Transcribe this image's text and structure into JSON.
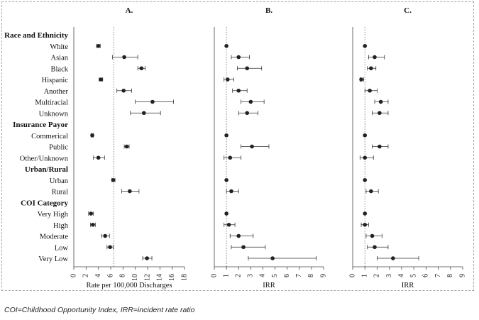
{
  "caption": "COI=Childhood Opportunity Index, IRR=incident rate ratio",
  "rows": [
    {
      "label": "Race and Ethnicity",
      "header": true
    },
    {
      "label": "White"
    },
    {
      "label": "Asian"
    },
    {
      "label": "Black"
    },
    {
      "label": "Hispanic"
    },
    {
      "label": "Another"
    },
    {
      "label": "Multiracial"
    },
    {
      "label": "Unknown"
    },
    {
      "label": "Insurance Payor",
      "header": true
    },
    {
      "label": "Commerical"
    },
    {
      "label": "Public"
    },
    {
      "label": "Other/Unknown"
    },
    {
      "label": "Urban/Rural",
      "header": true
    },
    {
      "label": "Urban"
    },
    {
      "label": "Rural"
    },
    {
      "label": "COI Category",
      "header": true
    },
    {
      "label": "Very High"
    },
    {
      "label": "High"
    },
    {
      "label": "Moderate"
    },
    {
      "label": "Low"
    },
    {
      "label": "Very Low"
    }
  ],
  "chart_data": [
    {
      "type": "scatter",
      "title": "A.",
      "xlabel": "Rate per 100,000 Discharges",
      "xlim": [
        0,
        18
      ],
      "xticks": [
        0,
        2,
        4,
        6,
        8,
        10,
        12,
        14,
        16,
        18
      ],
      "reference_line": 6.5,
      "points": [
        {
          "row": "White",
          "value": 4.0,
          "lo": 3.7,
          "hi": 4.3
        },
        {
          "row": "Asian",
          "value": 8.2,
          "lo": 6.3,
          "hi": 10.4
        },
        {
          "row": "Black",
          "value": 11.0,
          "lo": 10.4,
          "hi": 11.6
        },
        {
          "row": "Hispanic",
          "value": 4.4,
          "lo": 4.1,
          "hi": 4.7
        },
        {
          "row": "Another",
          "value": 8.1,
          "lo": 7.0,
          "hi": 9.4
        },
        {
          "row": "Multiracial",
          "value": 12.8,
          "lo": 10.0,
          "hi": 16.2
        },
        {
          "row": "Unknown",
          "value": 11.4,
          "lo": 9.2,
          "hi": 14.1
        },
        {
          "row": "Commerical",
          "value": 3.0,
          "lo": 2.8,
          "hi": 3.2
        },
        {
          "row": "Public",
          "value": 8.6,
          "lo": 8.2,
          "hi": 9.0
        },
        {
          "row": "Other/Unknown",
          "value": 4.0,
          "lo": 3.2,
          "hi": 5.0
        },
        {
          "row": "Urban",
          "value": 6.4,
          "lo": 6.2,
          "hi": 6.7
        },
        {
          "row": "Rural",
          "value": 9.1,
          "lo": 7.8,
          "hi": 10.6
        },
        {
          "row": "Very High",
          "value": 2.8,
          "lo": 2.4,
          "hi": 3.2
        },
        {
          "row": "High",
          "value": 3.1,
          "lo": 2.7,
          "hi": 3.5
        },
        {
          "row": "Moderate",
          "value": 5.1,
          "lo": 4.5,
          "hi": 5.8
        },
        {
          "row": "Low",
          "value": 5.9,
          "lo": 5.4,
          "hi": 6.4
        },
        {
          "row": "Very Low",
          "value": 11.9,
          "lo": 11.2,
          "hi": 12.7
        }
      ]
    },
    {
      "type": "scatter",
      "title": "B.",
      "xlabel": "IRR",
      "xlim": [
        0,
        9
      ],
      "xticks": [
        0,
        1,
        2,
        3,
        4,
        5,
        6,
        7,
        8,
        9
      ],
      "reference_line": 1,
      "points": [
        {
          "row": "White",
          "value": 1.0,
          "lo": 1.0,
          "hi": 1.0
        },
        {
          "row": "Asian",
          "value": 2.0,
          "lo": 1.4,
          "hi": 2.9
        },
        {
          "row": "Black",
          "value": 2.7,
          "lo": 1.9,
          "hi": 3.9
        },
        {
          "row": "Hispanic",
          "value": 1.1,
          "lo": 0.8,
          "hi": 1.6
        },
        {
          "row": "Another",
          "value": 2.0,
          "lo": 1.5,
          "hi": 2.7
        },
        {
          "row": "Multiracial",
          "value": 3.0,
          "lo": 2.2,
          "hi": 4.1
        },
        {
          "row": "Unknown",
          "value": 2.7,
          "lo": 2.0,
          "hi": 3.6
        },
        {
          "row": "Commerical",
          "value": 1.0,
          "lo": 1.0,
          "hi": 1.0
        },
        {
          "row": "Public",
          "value": 3.1,
          "lo": 2.2,
          "hi": 4.5
        },
        {
          "row": "Other/Unknown",
          "value": 1.3,
          "lo": 0.8,
          "hi": 2.2
        },
        {
          "row": "Urban",
          "value": 1.0,
          "lo": 1.0,
          "hi": 1.0
        },
        {
          "row": "Rural",
          "value": 1.4,
          "lo": 1.0,
          "hi": 2.0
        },
        {
          "row": "Very High",
          "value": 1.0,
          "lo": 1.0,
          "hi": 1.0
        },
        {
          "row": "High",
          "value": 1.2,
          "lo": 0.8,
          "hi": 1.7
        },
        {
          "row": "Moderate",
          "value": 2.0,
          "lo": 1.3,
          "hi": 3.2
        },
        {
          "row": "Low",
          "value": 2.4,
          "lo": 1.4,
          "hi": 4.2
        },
        {
          "row": "Very Low",
          "value": 4.8,
          "lo": 2.8,
          "hi": 8.4
        }
      ]
    },
    {
      "type": "scatter",
      "title": "C.",
      "xlabel": "IRR",
      "xlim": [
        0,
        9
      ],
      "xticks": [
        0,
        1,
        2,
        3,
        4,
        5,
        6,
        7,
        8,
        9
      ],
      "reference_line": 1,
      "points": [
        {
          "row": "White",
          "value": 1.0,
          "lo": 1.0,
          "hi": 1.0
        },
        {
          "row": "Asian",
          "value": 1.8,
          "lo": 1.3,
          "hi": 2.6
        },
        {
          "row": "Black",
          "value": 1.5,
          "lo": 1.2,
          "hi": 1.9
        },
        {
          "row": "Hispanic",
          "value": 0.7,
          "lo": 0.6,
          "hi": 0.9
        },
        {
          "row": "Another",
          "value": 1.4,
          "lo": 1.0,
          "hi": 2.0
        },
        {
          "row": "Multiracial",
          "value": 2.3,
          "lo": 1.8,
          "hi": 2.9
        },
        {
          "row": "Unknown",
          "value": 2.2,
          "lo": 1.6,
          "hi": 2.9
        },
        {
          "row": "Commerical",
          "value": 1.0,
          "lo": 1.0,
          "hi": 1.0
        },
        {
          "row": "Public",
          "value": 2.2,
          "lo": 1.6,
          "hi": 2.9
        },
        {
          "row": "Other/Unknown",
          "value": 1.0,
          "lo": 0.6,
          "hi": 1.7
        },
        {
          "row": "Urban",
          "value": 1.0,
          "lo": 1.0,
          "hi": 1.0
        },
        {
          "row": "Rural",
          "value": 1.5,
          "lo": 1.1,
          "hi": 2.1
        },
        {
          "row": "Very High",
          "value": 1.0,
          "lo": 1.0,
          "hi": 1.0
        },
        {
          "row": "High",
          "value": 1.0,
          "lo": 0.7,
          "hi": 1.3
        },
        {
          "row": "Moderate",
          "value": 1.6,
          "lo": 1.1,
          "hi": 2.4
        },
        {
          "row": "Low",
          "value": 1.8,
          "lo": 1.2,
          "hi": 2.9
        },
        {
          "row": "Very Low",
          "value": 3.3,
          "lo": 2.0,
          "hi": 5.4
        }
      ]
    }
  ]
}
